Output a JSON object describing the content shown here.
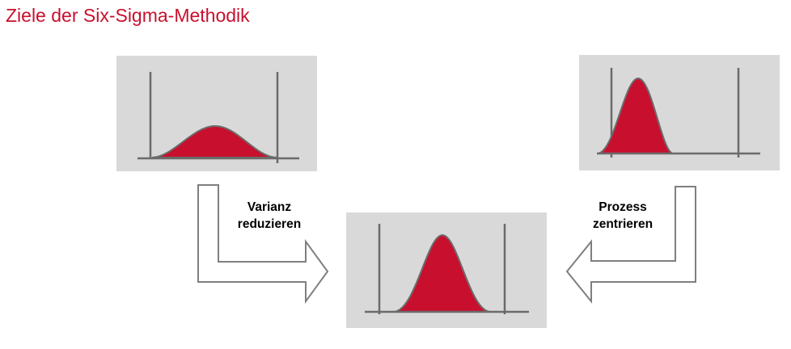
{
  "title": "Ziele der Six-Sigma-Methodik",
  "colors": {
    "title": "#c8102e",
    "curve_fill": "#c8102e",
    "curve_stroke": "#6b6b6b",
    "panel_background": "#d9d9d9",
    "axis": "#6b6b6b",
    "arrow_stroke": "#7f7f7f",
    "arrow_fill": "#ffffff"
  },
  "panels": {
    "top_left": {
      "description_icon": "wide-distribution-icon"
    },
    "top_right": {
      "description_icon": "offset-narrow-distribution-icon"
    },
    "bottom_center": {
      "description_icon": "centered-narrow-distribution-icon"
    }
  },
  "arrows": {
    "left": {
      "label_line1": "Varianz",
      "label_line2": "reduzieren"
    },
    "right": {
      "label_line1": "Prozess",
      "label_line2": "zentrieren"
    }
  }
}
